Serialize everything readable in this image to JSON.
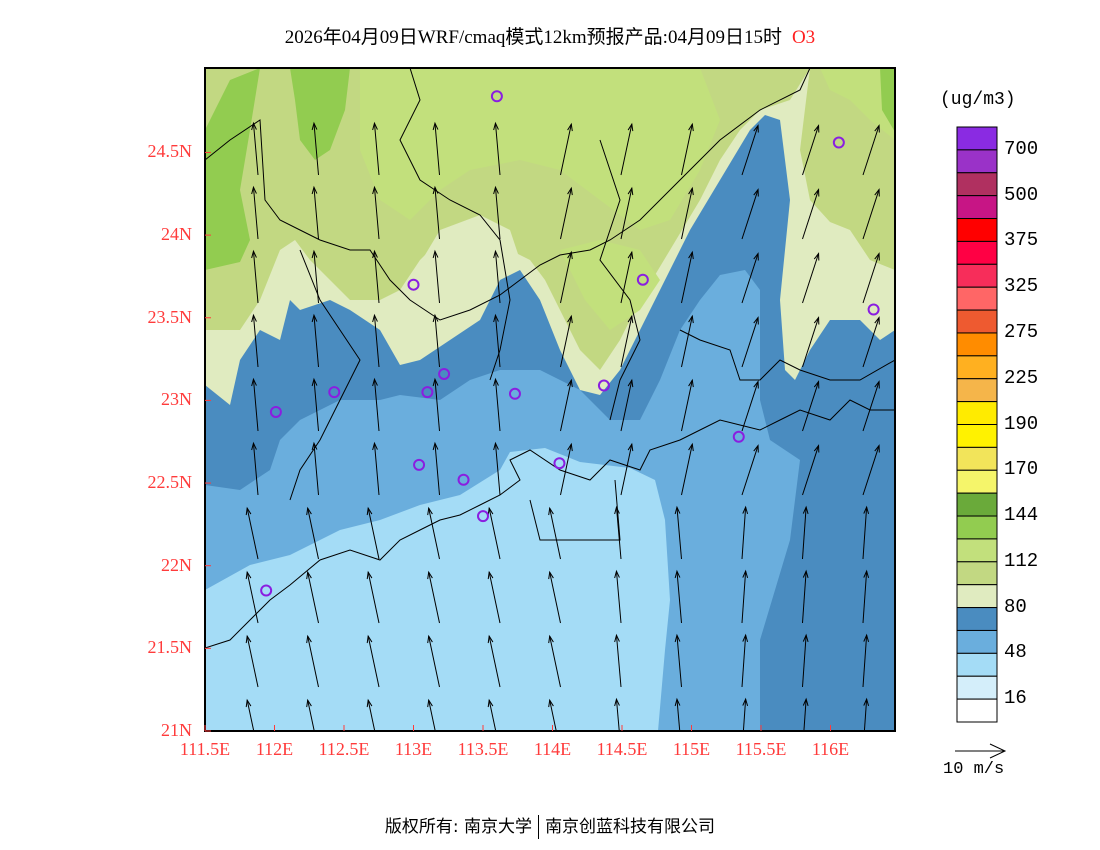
{
  "title": {
    "text": "2026年04月09日WRF/cmaq模式12km预报产品:04月09日15时",
    "species": "O3"
  },
  "map": {
    "lon_range": [
      111.5,
      116.46
    ],
    "lat_range": [
      21.0,
      25.02
    ],
    "lon_ticks": [
      "111.5E",
      "112E",
      "112.5E",
      "113E",
      "113.5E",
      "114E",
      "114.5E",
      "115E",
      "115.5E",
      "116E"
    ],
    "lat_ticks": [
      "24.5N",
      "24N",
      "23.5N",
      "23N",
      "22.5N",
      "22N",
      "21.5N",
      "21N"
    ],
    "wind_direction": "mostly southerly (arrows pointing north)",
    "stations": [
      {
        "lon": 113.6,
        "lat": 24.84
      },
      {
        "lon": 116.06,
        "lat": 24.56
      },
      {
        "lon": 113.0,
        "lat": 23.7
      },
      {
        "lon": 114.65,
        "lat": 23.73
      },
      {
        "lon": 116.31,
        "lat": 23.55
      },
      {
        "lon": 112.43,
        "lat": 23.05
      },
      {
        "lon": 113.22,
        "lat": 23.16
      },
      {
        "lon": 113.1,
        "lat": 23.05
      },
      {
        "lon": 113.73,
        "lat": 23.04
      },
      {
        "lon": 114.37,
        "lat": 23.09
      },
      {
        "lon": 112.01,
        "lat": 22.93
      },
      {
        "lon": 115.34,
        "lat": 22.78
      },
      {
        "lon": 113.04,
        "lat": 22.61
      },
      {
        "lon": 113.36,
        "lat": 22.52
      },
      {
        "lon": 114.05,
        "lat": 22.62
      },
      {
        "lon": 113.5,
        "lat": 22.3
      },
      {
        "lon": 111.94,
        "lat": 21.85
      }
    ],
    "station_color": "#8a1ee0"
  },
  "colorbar": {
    "unit": "(ug/m3)",
    "colors": [
      "#8a2be2",
      "#9a32c8",
      "#b03060",
      "#c71585",
      "#ff0000",
      "#ff0044",
      "#f72d5a",
      "#ff6666",
      "#ee5a30",
      "#ff8c00",
      "#ffb020",
      "#f5b54a",
      "#ffeb00",
      "#fff200",
      "#f2e45a",
      "#f5f56a",
      "#6aaa3a",
      "#92cc50",
      "#c2e07c",
      "#c2d882",
      "#e0ebc0",
      "#4a8cc0",
      "#6aaedd",
      "#a4dcf6",
      "#d4eefa",
      "#ffffff"
    ],
    "labels": [
      "700",
      "500",
      "375",
      "325",
      "275",
      "225",
      "190",
      "170",
      "144",
      "112",
      "80",
      "48",
      "16"
    ]
  },
  "wind_reference": "10 m/s",
  "footer": {
    "left": "版权所有: 南京大学",
    "right": "南京创蓝科技有限公司"
  }
}
